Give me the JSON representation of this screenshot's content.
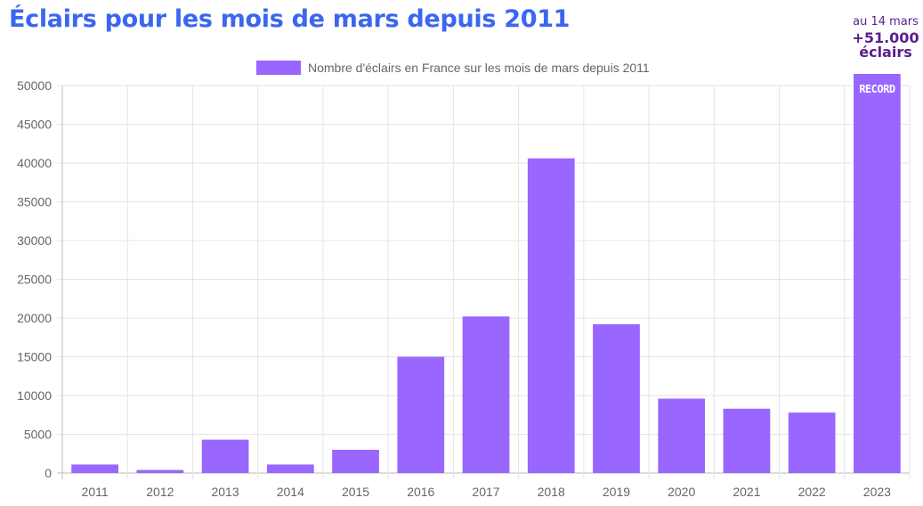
{
  "header": {
    "title": "Éclairs pour les mois de mars depuis 2011"
  },
  "annotation": {
    "line1": "au 14 mars",
    "line2": "+51.000",
    "line3": "éclairs",
    "bar_label": "RECORD"
  },
  "colors": {
    "bar": "#9966ff",
    "title": "#3a67ee",
    "annotation": "#5a1f8c"
  },
  "chart_data": {
    "type": "bar",
    "title": "",
    "xlabel": "",
    "ylabel": "",
    "categories": [
      "2011",
      "2012",
      "2013",
      "2014",
      "2015",
      "2016",
      "2017",
      "2018",
      "2019",
      "2020",
      "2021",
      "2022",
      "2023"
    ],
    "series": [
      {
        "name": "Nombre d'éclairs en France sur les mois de mars depuis 2011",
        "values": [
          1100,
          400,
          4300,
          1100,
          3000,
          15000,
          20200,
          40600,
          19200,
          9600,
          8300,
          7800,
          51500
        ]
      }
    ],
    "ylim": [
      0,
      50000
    ],
    "yticks": [
      0,
      5000,
      10000,
      15000,
      20000,
      25000,
      30000,
      35000,
      40000,
      45000,
      50000
    ],
    "grid": true,
    "legend": "top-center"
  }
}
